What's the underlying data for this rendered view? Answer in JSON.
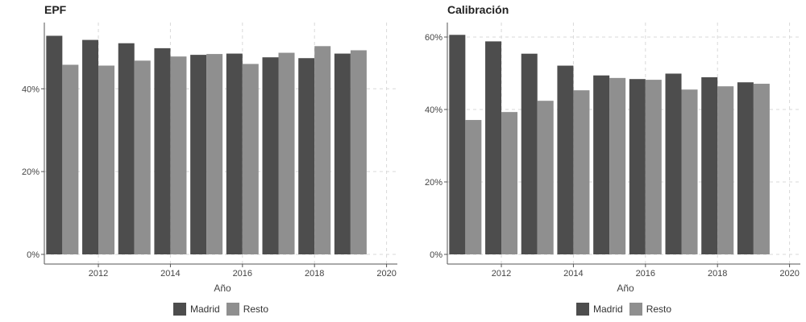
{
  "chart_data": [
    {
      "type": "bar",
      "title": "EPF",
      "xlabel": "Año",
      "ylabel": "",
      "x": [
        2011,
        2012,
        2013,
        2014,
        2015,
        2016,
        2017,
        2018,
        2019
      ],
      "x_ticks": [
        "2012",
        "2014",
        "2016",
        "2018",
        "2020"
      ],
      "y_ticks": [
        "0%",
        "20%",
        "40%"
      ],
      "ylim": [
        0,
        56
      ],
      "grid": true,
      "legend_position": "bottom",
      "series": [
        {
          "name": "Madrid",
          "color": "#4d4d4d",
          "values": [
            52.8,
            51.8,
            51.0,
            49.8,
            48.2,
            48.5,
            47.6,
            47.4,
            48.5
          ]
        },
        {
          "name": "Resto",
          "color": "#8f8f8f",
          "values": [
            45.8,
            45.6,
            46.8,
            47.8,
            48.4,
            46.0,
            48.7,
            50.3,
            49.3
          ]
        }
      ]
    },
    {
      "type": "bar",
      "title": "Calibración",
      "xlabel": "Año",
      "ylabel": "",
      "x": [
        2011,
        2012,
        2013,
        2014,
        2015,
        2016,
        2017,
        2018,
        2019
      ],
      "x_ticks": [
        "2012",
        "2014",
        "2016",
        "2018",
        "2020"
      ],
      "y_ticks": [
        "0%",
        "20%",
        "40%",
        "60%"
      ],
      "ylim": [
        0,
        64
      ],
      "grid": true,
      "legend_position": "bottom",
      "series": [
        {
          "name": "Madrid",
          "color": "#4d4d4d",
          "values": [
            60.6,
            58.8,
            55.4,
            52.1,
            49.4,
            48.4,
            49.9,
            48.9,
            47.5
          ]
        },
        {
          "name": "Resto",
          "color": "#8f8f8f",
          "values": [
            37.1,
            39.3,
            42.4,
            45.3,
            48.7,
            48.2,
            45.5,
            46.4,
            47.1
          ]
        }
      ]
    }
  ]
}
